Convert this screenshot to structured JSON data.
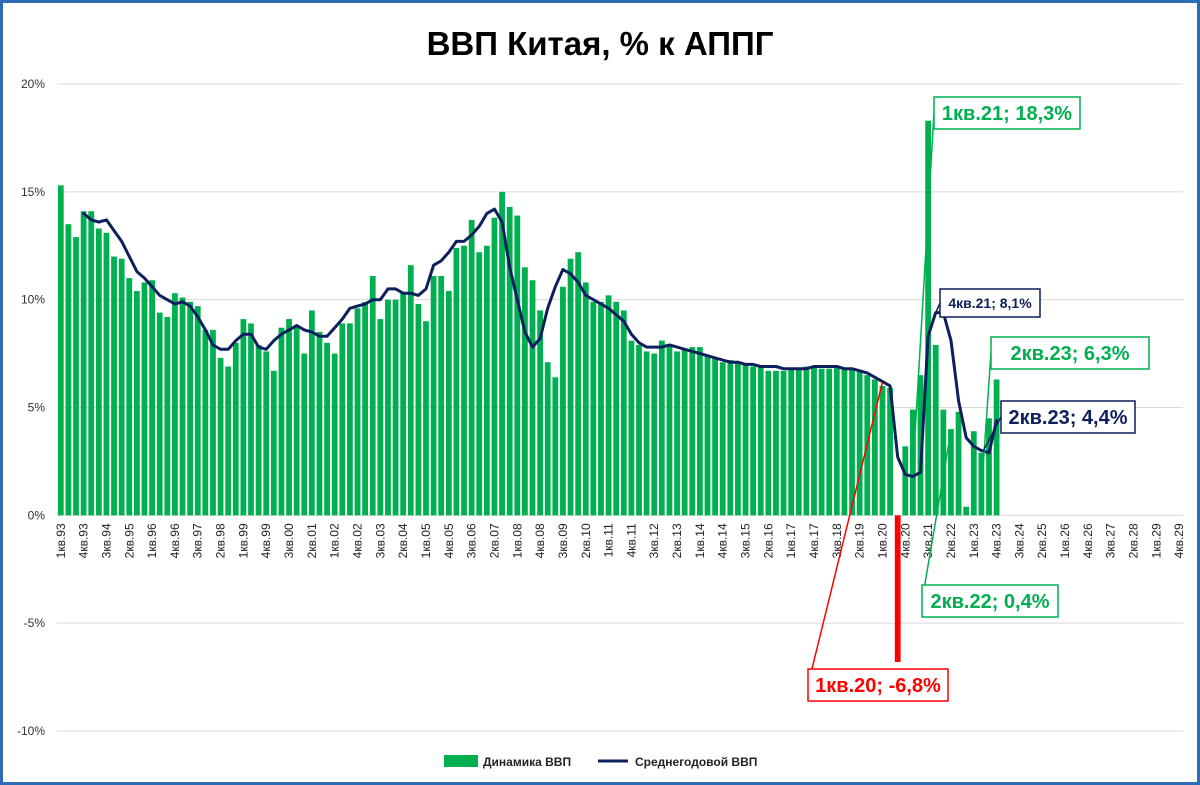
{
  "chart_data": {
    "type": "bar+line",
    "title": "ВВП Китая, % к АППГ",
    "xlabel": "",
    "ylabel": "",
    "ylim": [
      -10,
      20
    ],
    "yticks": [
      -10,
      -5,
      0,
      5,
      10,
      15,
      20
    ],
    "ytick_labels": [
      "-10%",
      "-5%",
      "0%",
      "5%",
      "10%",
      "15%",
      "20%"
    ],
    "grid": true,
    "legend_position": "bottom",
    "xtick_labels": [
      "1кв.93",
      "4кв.93",
      "3кв.94",
      "2кв.95",
      "1кв.96",
      "4кв.96",
      "3кв.97",
      "2кв.98",
      "1кв.99",
      "4кв.99",
      "3кв.00",
      "2кв.01",
      "1кв.02",
      "4кв.02",
      "3кв.03",
      "2кв.04",
      "1кв.05",
      "4кв.05",
      "3кв.06",
      "2кв.07",
      "1кв.08",
      "4кв.08",
      "3кв.09",
      "2кв.10",
      "1кв.11",
      "4кв.11",
      "3кв.12",
      "2кв.13",
      "1кв.14",
      "4кв.14",
      "3кв.15",
      "2кв.16",
      "1кв.17",
      "4кв.17",
      "3кв.18",
      "2кв.19",
      "1кв.20",
      "4кв.20",
      "3кв.21",
      "2кв.22",
      "1кв.23",
      "4кв.23",
      "3кв.24",
      "2кв.25",
      "1кв.26",
      "4кв.26",
      "3кв.27",
      "2кв.28",
      "1кв.29",
      "4кв.29"
    ],
    "n_periods": 148,
    "series": [
      {
        "name": "Динамика ВВП",
        "kind": "bar",
        "color": "#00b050",
        "negative_color": "#ff0000",
        "values": [
          15.3,
          13.5,
          12.9,
          14.1,
          14.1,
          13.3,
          13.1,
          12.0,
          11.9,
          11.0,
          10.4,
          10.8,
          10.9,
          9.4,
          9.2,
          10.3,
          10.1,
          9.9,
          9.7,
          8.6,
          8.6,
          7.3,
          6.9,
          8.0,
          9.1,
          8.9,
          7.9,
          7.6,
          6.7,
          8.7,
          9.1,
          8.8,
          7.5,
          9.5,
          8.5,
          8.0,
          7.5,
          8.9,
          8.9,
          9.6,
          9.9,
          11.1,
          9.1,
          10.0,
          10.0,
          10.3,
          11.6,
          9.8,
          9.0,
          11.1,
          11.1,
          10.4,
          12.4,
          12.5,
          13.7,
          12.2,
          12.5,
          13.8,
          15.0,
          14.3,
          13.9,
          11.5,
          10.9,
          9.5,
          7.1,
          6.4,
          10.6,
          11.9,
          12.2,
          10.8,
          9.9,
          9.9,
          10.2,
          9.9,
          9.5,
          8.1,
          7.9,
          7.6,
          7.5,
          8.1,
          7.9,
          7.6,
          7.7,
          7.8,
          7.8,
          7.4,
          7.3,
          7.1,
          7.2,
          7.1,
          7.0,
          6.9,
          6.9,
          6.7,
          6.7,
          6.7,
          6.8,
          6.8,
          6.9,
          6.9,
          6.8,
          6.8,
          6.9,
          6.8,
          6.8,
          6.7,
          6.5,
          6.3,
          6.0,
          5.9,
          -6.8,
          3.2,
          4.9,
          6.5,
          18.3,
          7.9,
          4.9,
          4.0,
          4.8,
          0.4,
          3.9,
          2.9,
          4.5,
          6.3
        ],
        "annotations": [
          {
            "text": "1кв.21; 18,3%",
            "color": "#00b050"
          },
          {
            "text": "1кв.20; -6,8%",
            "color": "#ff0000"
          },
          {
            "text": "2кв.22; 0,4%",
            "color": "#00b050"
          },
          {
            "text": "2кв.23; 6,3%",
            "color": "#00b050"
          }
        ]
      },
      {
        "name": "Среднегодовой ВВП",
        "kind": "line",
        "color": "#0d1f5c",
        "start_index": 3,
        "values": [
          14.0,
          13.7,
          13.6,
          13.7,
          13.2,
          12.7,
          12.0,
          11.3,
          11.0,
          10.6,
          10.2,
          10.0,
          9.8,
          9.9,
          9.7,
          9.2,
          8.6,
          7.9,
          7.7,
          7.7,
          8.1,
          8.4,
          8.4,
          7.8,
          7.7,
          8.1,
          8.4,
          8.6,
          8.8,
          8.6,
          8.5,
          8.3,
          8.3,
          8.7,
          9.1,
          9.6,
          9.7,
          9.8,
          10.0,
          10.0,
          10.5,
          10.5,
          10.3,
          10.3,
          10.2,
          10.5,
          11.6,
          11.8,
          12.2,
          12.7,
          12.7,
          13.0,
          13.4,
          14.0,
          14.2,
          13.6,
          11.5,
          10.0,
          8.5,
          7.8,
          8.2,
          9.6,
          10.6,
          11.4,
          11.2,
          10.8,
          10.2,
          10.0,
          9.8,
          9.6,
          9.3,
          9.0,
          8.4,
          8.0,
          7.8,
          7.8,
          7.8,
          7.9,
          7.8,
          7.7,
          7.6,
          7.5,
          7.4,
          7.3,
          7.2,
          7.1,
          7.1,
          7.0,
          7.0,
          6.9,
          6.9,
          6.9,
          6.8,
          6.8,
          6.8,
          6.8,
          6.9,
          6.9,
          6.9,
          6.9,
          6.8,
          6.8,
          6.7,
          6.6,
          6.4,
          6.2,
          6.0,
          2.7,
          1.9,
          1.8,
          2.0,
          8.3,
          9.4,
          9.4,
          8.1,
          5.3,
          3.6,
          3.2,
          3.0,
          2.9,
          4.4
        ],
        "annotations": [
          {
            "text": "4кв.21; 8,1%",
            "color": "#0d1f5c"
          },
          {
            "text": "2кв.23; 4,4%",
            "color": "#0d1f5c"
          }
        ]
      }
    ]
  }
}
